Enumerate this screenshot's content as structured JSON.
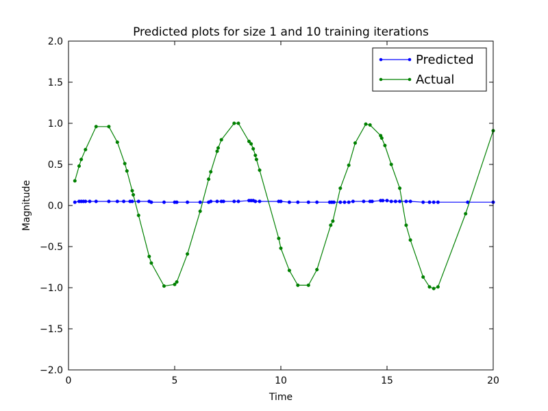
{
  "chart_data": {
    "type": "line",
    "title": "Predicted plots for size 1 and 10 training iterations",
    "xlabel": "Time",
    "ylabel": "Magnitude",
    "xlim": [
      0,
      20
    ],
    "ylim": [
      -2.0,
      2.0
    ],
    "grid": false,
    "legend_position": "top-right",
    "x_ticks": [
      "0",
      "5",
      "10",
      "15",
      "20"
    ],
    "y_ticks": [
      "−2.0",
      "−1.5",
      "−1.0",
      "−0.5",
      "0.0",
      "0.5",
      "1.0",
      "1.5",
      "2.0"
    ],
    "series": [
      {
        "name": "Predicted",
        "color": "#0000ff",
        "x": [
          0.3,
          0.5,
          0.6,
          0.7,
          0.8,
          1.0,
          1.3,
          1.9,
          2.3,
          2.6,
          2.9,
          3.0,
          3.3,
          3.8,
          3.9,
          4.5,
          5.0,
          5.1,
          5.6,
          6.2,
          6.6,
          6.7,
          7.0,
          7.2,
          7.3,
          7.8,
          8.0,
          8.5,
          8.6,
          8.7,
          8.8,
          9.0,
          9.9,
          10.0,
          10.4,
          10.8,
          11.3,
          11.7,
          12.3,
          12.4,
          12.5,
          12.8,
          13.0,
          13.2,
          13.4,
          13.9,
          14.2,
          14.3,
          14.7,
          14.8,
          15.0,
          15.2,
          15.4,
          15.6,
          15.9,
          16.1,
          16.7,
          17.0,
          17.2,
          17.4,
          18.8,
          20.0
        ],
        "values": [
          0.04,
          0.05,
          0.05,
          0.05,
          0.05,
          0.05,
          0.05,
          0.05,
          0.05,
          0.05,
          0.05,
          0.05,
          0.05,
          0.05,
          0.04,
          0.04,
          0.04,
          0.04,
          0.04,
          0.04,
          0.04,
          0.05,
          0.05,
          0.05,
          0.05,
          0.05,
          0.05,
          0.06,
          0.06,
          0.06,
          0.05,
          0.05,
          0.05,
          0.05,
          0.04,
          0.04,
          0.04,
          0.04,
          0.04,
          0.04,
          0.04,
          0.04,
          0.04,
          0.04,
          0.05,
          0.05,
          0.05,
          0.05,
          0.06,
          0.06,
          0.06,
          0.05,
          0.05,
          0.05,
          0.05,
          0.05,
          0.04,
          0.04,
          0.04,
          0.04,
          0.04,
          0.04
        ]
      },
      {
        "name": "Actual",
        "color": "#008000",
        "x": [
          0.3,
          0.5,
          0.6,
          0.8,
          1.3,
          1.9,
          2.3,
          2.65,
          2.75,
          3.0,
          3.05,
          3.3,
          3.8,
          3.9,
          4.5,
          5.0,
          5.1,
          5.6,
          6.2,
          6.6,
          6.7,
          7.0,
          7.05,
          7.2,
          7.8,
          8.0,
          8.5,
          8.6,
          8.7,
          8.8,
          8.85,
          9.0,
          9.9,
          10.0,
          10.4,
          10.8,
          11.3,
          11.7,
          12.35,
          12.45,
          12.8,
          13.2,
          13.5,
          14.0,
          14.2,
          14.7,
          14.75,
          14.9,
          15.2,
          15.6,
          15.9,
          16.1,
          16.7,
          17.0,
          17.2,
          17.4,
          18.7,
          20.0
        ],
        "values": [
          0.3,
          0.48,
          0.56,
          0.68,
          0.96,
          0.96,
          0.77,
          0.51,
          0.42,
          0.18,
          0.13,
          -0.12,
          -0.62,
          -0.7,
          -0.98,
          -0.96,
          -0.93,
          -0.59,
          -0.07,
          0.32,
          0.41,
          0.66,
          0.7,
          0.8,
          1.0,
          1.0,
          0.78,
          0.75,
          0.69,
          0.61,
          0.56,
          0.43,
          -0.4,
          -0.52,
          -0.79,
          -0.97,
          -0.97,
          -0.78,
          -0.24,
          -0.19,
          0.21,
          0.49,
          0.76,
          0.99,
          0.98,
          0.85,
          0.82,
          0.73,
          0.5,
          0.21,
          -0.24,
          -0.42,
          -0.87,
          -0.99,
          -1.01,
          -0.99,
          -0.1,
          0.91
        ]
      }
    ]
  }
}
